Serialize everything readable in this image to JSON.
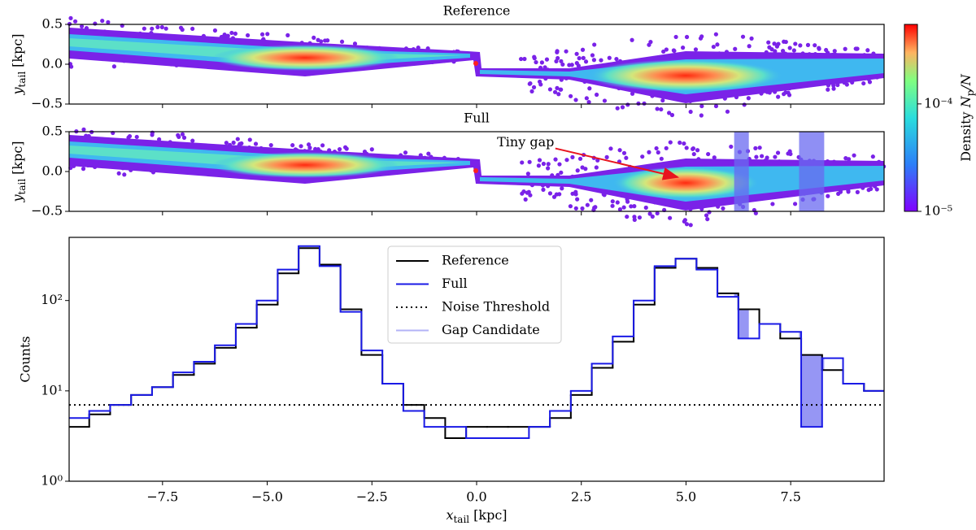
{
  "chart_data": [
    {
      "type": "density",
      "title": "Reference",
      "xlim": [
        -9.73,
        9.73
      ],
      "xticks": [
        -7.5,
        -5,
        -2.5,
        0,
        2.5,
        5,
        7.5
      ],
      "ylim": [
        -0.5,
        0.5
      ],
      "yticks": [
        {
          "value": -0.5,
          "label": "−0.5"
        },
        {
          "value": 0,
          "label": "0.0"
        },
        0.5
      ],
      "ylabel": {
        "symbol": "y",
        "subscript": "tail",
        "unit": "[kpc]"
      },
      "colorbar": {
        "scale": "log",
        "lim": [
          1e-05,
          0.00055
        ],
        "ticks": [
          {
            "value": 1e-05,
            "label": "10⁻⁵"
          },
          {
            "value": 0.0001,
            "label": "10⁻⁴"
          }
        ],
        "label": {
          "prefix": "Density",
          "symbol": "N",
          "subscript": "p",
          "suffix": "/N"
        }
      }
    },
    {
      "type": "density",
      "title": "Full",
      "xlim": [
        -9.73,
        9.73
      ],
      "xticks": [
        -7.5,
        -5,
        -2.5,
        0,
        2.5,
        5,
        7.5
      ],
      "ylim": [
        -0.5,
        0.5
      ],
      "yticks": [
        {
          "value": -0.5,
          "label": "−0.5"
        },
        {
          "value": 0,
          "label": "0.0"
        },
        0.5
      ],
      "ylabel": {
        "symbol": "y",
        "subscript": "tail",
        "unit": "[kpc]"
      },
      "annotation": {
        "text": "Tiny gap",
        "xytext": [
          1.17,
          0.36
        ],
        "arrow_from": [
          1.88,
          0.29
        ],
        "xy": [
          4.8,
          -0.07
        ],
        "color": "#e8141e"
      },
      "gap_candidates": [
        [
          6.15,
          6.5
        ],
        [
          7.7,
          8.3
        ]
      ],
      "gap_color": "#6a6af0"
    },
    {
      "type": "line",
      "drawstyle": "steps",
      "yscale": "log",
      "xlim": [
        -9.73,
        9.73
      ],
      "xticks": [
        {
          "value": -7.5,
          "label": "−7.5"
        },
        {
          "value": -5,
          "label": "−5.0"
        },
        {
          "value": -2.5,
          "label": "−2.5"
        },
        {
          "value": 0,
          "label": "0.0"
        },
        2.5,
        {
          "value": 5,
          "label": "5.0"
        },
        7.5
      ],
      "ylim": [
        1,
        500
      ],
      "yticks": [
        {
          "value": 1,
          "label": "10⁰"
        },
        {
          "value": 10,
          "label": "10¹"
        },
        {
          "value": 100,
          "label": "10²"
        }
      ],
      "xlabel": {
        "symbol": "x",
        "subscript": "tail",
        "unit": "[kpc]"
      },
      "ylabel": "Counts",
      "x": [
        -9.5,
        -9,
        -8.5,
        -8,
        -7.5,
        -7,
        -6.5,
        -6,
        -5.5,
        -5,
        -4.5,
        -4,
        -3.5,
        -3,
        -2.5,
        -2,
        -1.5,
        -1,
        -0.5,
        0,
        0.5,
        1,
        1.5,
        2,
        2.5,
        3,
        3.5,
        4,
        4.5,
        5,
        5.5,
        6,
        6.5,
        7,
        7.5,
        8,
        8.5,
        9,
        9.5
      ],
      "series": [
        {
          "name": "Reference",
          "color": "#000000",
          "values": [
            4,
            5.5,
            7,
            9,
            11,
            15,
            20,
            30,
            50,
            90,
            200,
            380,
            250,
            80,
            25,
            12,
            7,
            5,
            3,
            4,
            4,
            4,
            4,
            5,
            9,
            18,
            35,
            90,
            230,
            290,
            230,
            120,
            80,
            55,
            38,
            25,
            17,
            12,
            10
          ]
        },
        {
          "name": "Full",
          "color": "#1a1ae6",
          "values": [
            5,
            6,
            7,
            9,
            11,
            16,
            21,
            32,
            55,
            100,
            220,
            400,
            240,
            75,
            28,
            12,
            6,
            4,
            4,
            3,
            3,
            3,
            4,
            6,
            10,
            20,
            40,
            100,
            240,
            290,
            220,
            110,
            38,
            55,
            45,
            4,
            23,
            12,
            10
          ]
        }
      ],
      "threshold": {
        "name": "Noise Threshold",
        "value": 7,
        "color": "#000000"
      },
      "gap_legend": {
        "name": "Gap Candidate",
        "color": "#6a6af0"
      },
      "legend": "upper center"
    }
  ]
}
